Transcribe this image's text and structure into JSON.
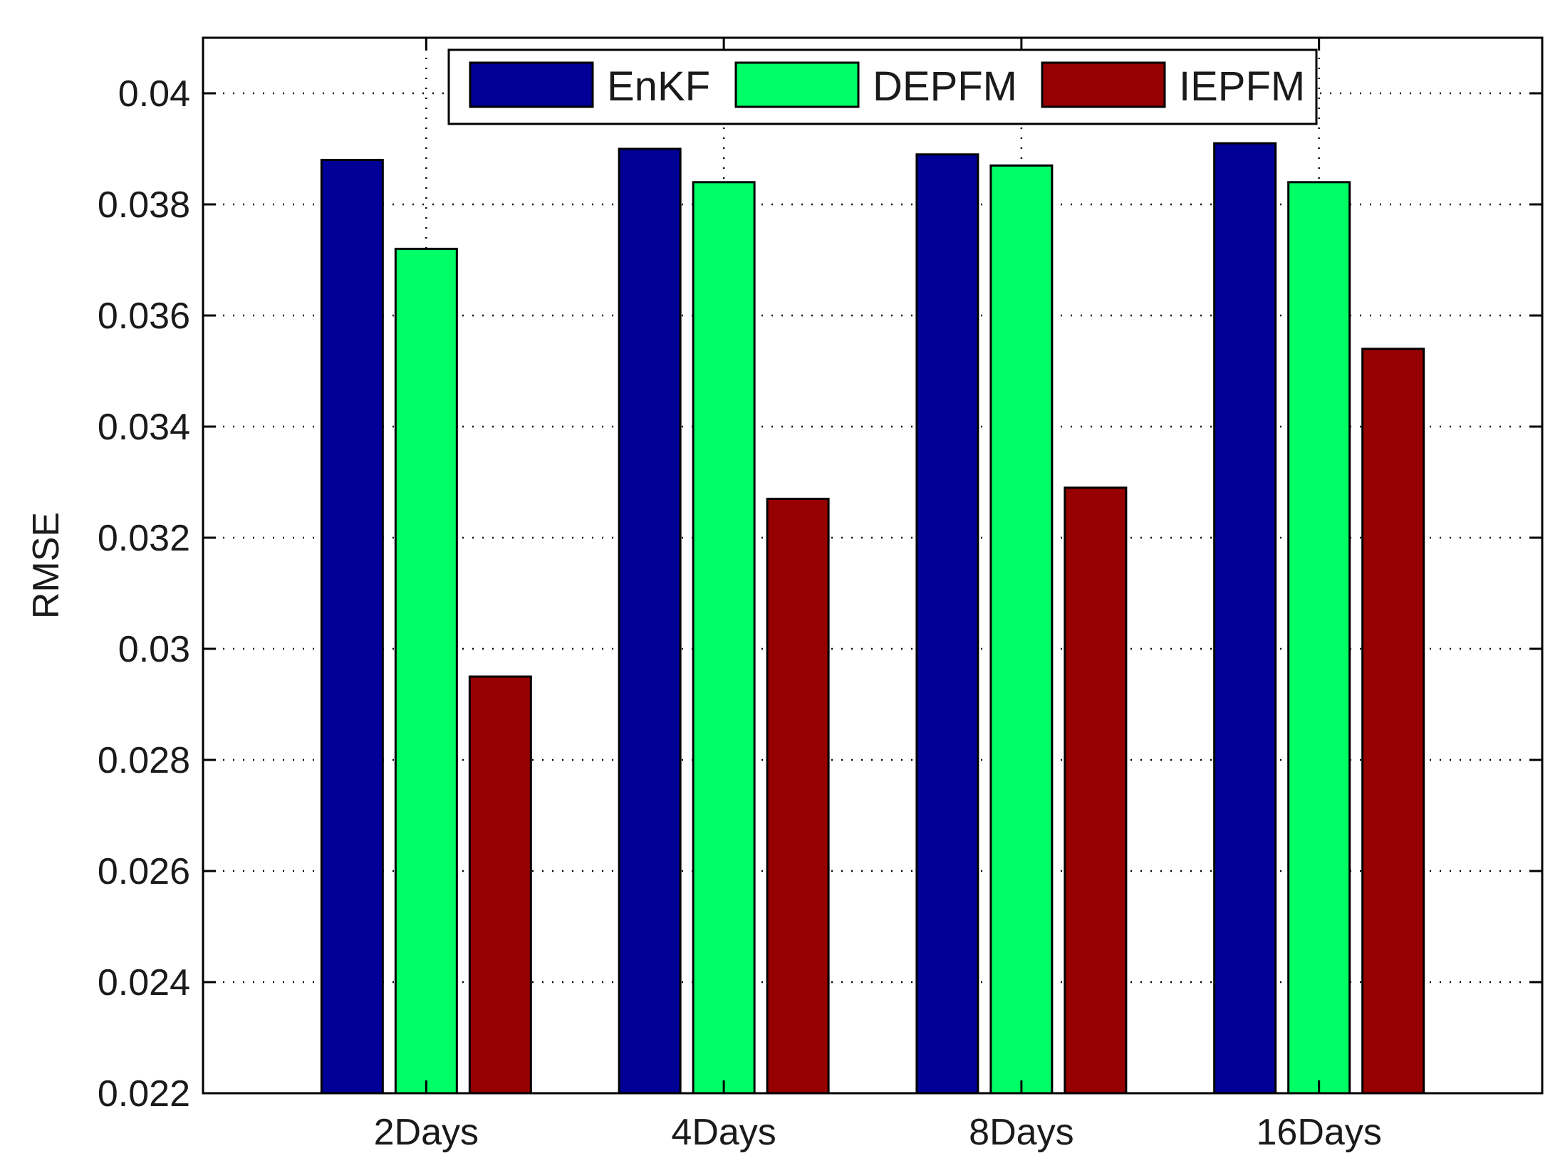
{
  "chart_data": {
    "type": "bar",
    "title": "",
    "xlabel": "",
    "ylabel": "RMSE",
    "categories": [
      "2Days",
      "4Days",
      "8Days",
      "16Days"
    ],
    "series": [
      {
        "name": "EnKF",
        "color": "#000096",
        "values": [
          0.0388,
          0.039,
          0.0389,
          0.0391
        ]
      },
      {
        "name": "DEPFM",
        "color": "#00ff66",
        "values": [
          0.0372,
          0.0384,
          0.0387,
          0.0384
        ]
      },
      {
        "name": "IEPFM",
        "color": "#960000",
        "values": [
          0.0295,
          0.0327,
          0.0329,
          0.0354
        ]
      }
    ],
    "ylim": [
      0.022,
      0.041
    ],
    "yticks": [
      "0.022",
      "0.024",
      "0.026",
      "0.028",
      "0.03",
      "0.032",
      "0.034",
      "0.036",
      "0.038",
      "0.04"
    ],
    "grid": true,
    "legend_position": "top-center"
  }
}
